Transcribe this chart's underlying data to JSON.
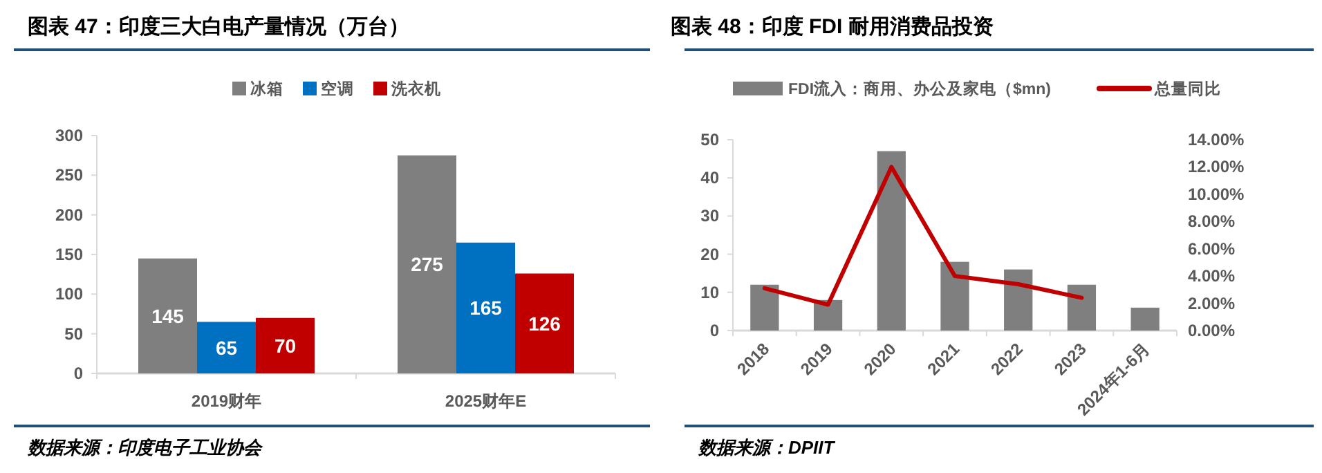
{
  "chart_data": [
    {
      "type": "bar",
      "title": "图表 47：印度三大白电产量情况（万台）",
      "categories": [
        "2019财年",
        "2025财年E"
      ],
      "series": [
        {
          "name": "冰箱",
          "color": "#7f7f7f",
          "values": [
            145,
            275
          ]
        },
        {
          "name": "空调",
          "color": "#0070c0",
          "values": [
            65,
            165
          ]
        },
        {
          "name": "洗衣机",
          "color": "#c00000",
          "values": [
            70,
            126
          ]
        }
      ],
      "ylim": [
        0,
        300
      ],
      "yticks": [
        0,
        50,
        100,
        150,
        200,
        250,
        300
      ],
      "data_labels": true,
      "legend": "top",
      "annotations": [
        "数据来源：印度电子工业协会"
      ]
    },
    {
      "type": "bar",
      "title": "图表 48：印度 FDI 耐用消费品投资",
      "categories": [
        "2018",
        "2019",
        "2020",
        "2021",
        "2022",
        "2023",
        "2024年1-6月"
      ],
      "series": [
        {
          "name": "FDI流入：商用、办公及家电（$mn)",
          "color": "#7f7f7f",
          "values": [
            12,
            8,
            47,
            18,
            16,
            12,
            6
          ]
        },
        {
          "name": "总量同比",
          "type": "line",
          "axis": "y2",
          "color": "#c00000",
          "values": [
            3.1,
            1.9,
            12.0,
            4.0,
            3.4,
            2.4,
            null
          ]
        }
      ],
      "ylim": [
        0,
        50
      ],
      "yticks": [
        0,
        10,
        20,
        30,
        40,
        50
      ],
      "y2lim": [
        0,
        14
      ],
      "y2ticks": [
        {
          "value": 0,
          "label": "0.00%"
        },
        {
          "value": 2,
          "label": "2.00%"
        },
        {
          "value": 4,
          "label": "4.00%"
        },
        {
          "value": 6,
          "label": "6.00%"
        },
        {
          "value": 8,
          "label": "8.00%"
        },
        {
          "value": 10,
          "label": "10.00%"
        },
        {
          "value": 12,
          "label": "12.00%"
        },
        {
          "value": 14,
          "label": "14.00%"
        }
      ],
      "legend": "top",
      "annotations": [
        "数据来源：DPIIT"
      ]
    }
  ]
}
